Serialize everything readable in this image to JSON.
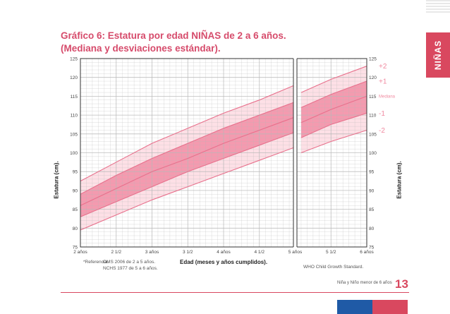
{
  "title": {
    "line1": "Gráfico 6: Estatura por edad NIÑAS de 2 a 6 años.",
    "line2": "(Mediana y desviaciones estándar)."
  },
  "side_tab": {
    "label": "NIÑAS",
    "color": "#d9485f"
  },
  "reference": {
    "label": "*Referencia:",
    "line1": "OMS   2006 de 2 a 5 años.",
    "line2": "NCHS  1977 de 5 a 6 años."
  },
  "who_label": "WHO Child Growth Standard.",
  "footer": {
    "text": "Niña y Niño menor de 6 años",
    "page": "13"
  },
  "colors": {
    "accent": "#d9485f",
    "band_dark": "#f49aaf",
    "band_light": "#fde0e6",
    "line": "#e8708c",
    "grid": "#b8b8b8"
  },
  "chart_data": {
    "type": "line",
    "title": "",
    "xlabel": "Edad (meses y años cumplidos).",
    "ylabel": "Estatura (cm).",
    "x_unit": "months",
    "xlim": [
      24,
      72
    ],
    "ylim": [
      75,
      125
    ],
    "x_ticks": [
      {
        "month": 24,
        "label": "2 años"
      },
      {
        "month": 30,
        "label": "2 1/2"
      },
      {
        "month": 36,
        "label": "3 años"
      },
      {
        "month": 42,
        "label": "3 1/2"
      },
      {
        "month": 48,
        "label": "4 años"
      },
      {
        "month": 54,
        "label": "4 1/2"
      },
      {
        "month": 60,
        "label": "5 años"
      },
      {
        "month": 66,
        "label": "5 1/2"
      },
      {
        "month": 72,
        "label": "6 años"
      }
    ],
    "y_ticks": [
      75,
      80,
      85,
      90,
      95,
      100,
      105,
      110,
      115,
      120,
      125
    ],
    "grid": true,
    "segment_break_month": 60,
    "series": [
      {
        "name": "+2",
        "x": [
          24,
          30,
          36,
          42,
          48,
          54,
          60,
          61,
          66,
          72
        ],
        "values": [
          92.5,
          97.5,
          102.5,
          106.5,
          110.5,
          114.0,
          118.0,
          116.0,
          119.5,
          123.0
        ]
      },
      {
        "name": "+1",
        "x": [
          24,
          30,
          36,
          42,
          48,
          54,
          60,
          61,
          66,
          72
        ],
        "values": [
          89.0,
          94.0,
          98.5,
          102.5,
          106.5,
          110.0,
          113.5,
          112.0,
          115.5,
          119.0
        ]
      },
      {
        "name": "Mediana",
        "x": [
          24,
          30,
          36,
          42,
          48,
          54,
          60,
          61,
          66,
          72
        ],
        "values": [
          86.0,
          90.5,
          95.0,
          98.5,
          102.5,
          106.0,
          109.5,
          108.0,
          111.5,
          115.0
        ]
      },
      {
        "name": "-1",
        "x": [
          24,
          30,
          36,
          42,
          48,
          54,
          60,
          61,
          66,
          72
        ],
        "values": [
          83.0,
          87.0,
          91.0,
          95.0,
          98.5,
          102.0,
          105.5,
          104.0,
          107.5,
          110.5
        ]
      },
      {
        "name": "-2",
        "x": [
          24,
          30,
          36,
          42,
          48,
          54,
          60,
          61,
          66,
          72
        ],
        "values": [
          79.5,
          83.5,
          87.5,
          91.0,
          94.5,
          98.0,
          101.5,
          100.0,
          103.0,
          106.0
        ]
      }
    ]
  }
}
